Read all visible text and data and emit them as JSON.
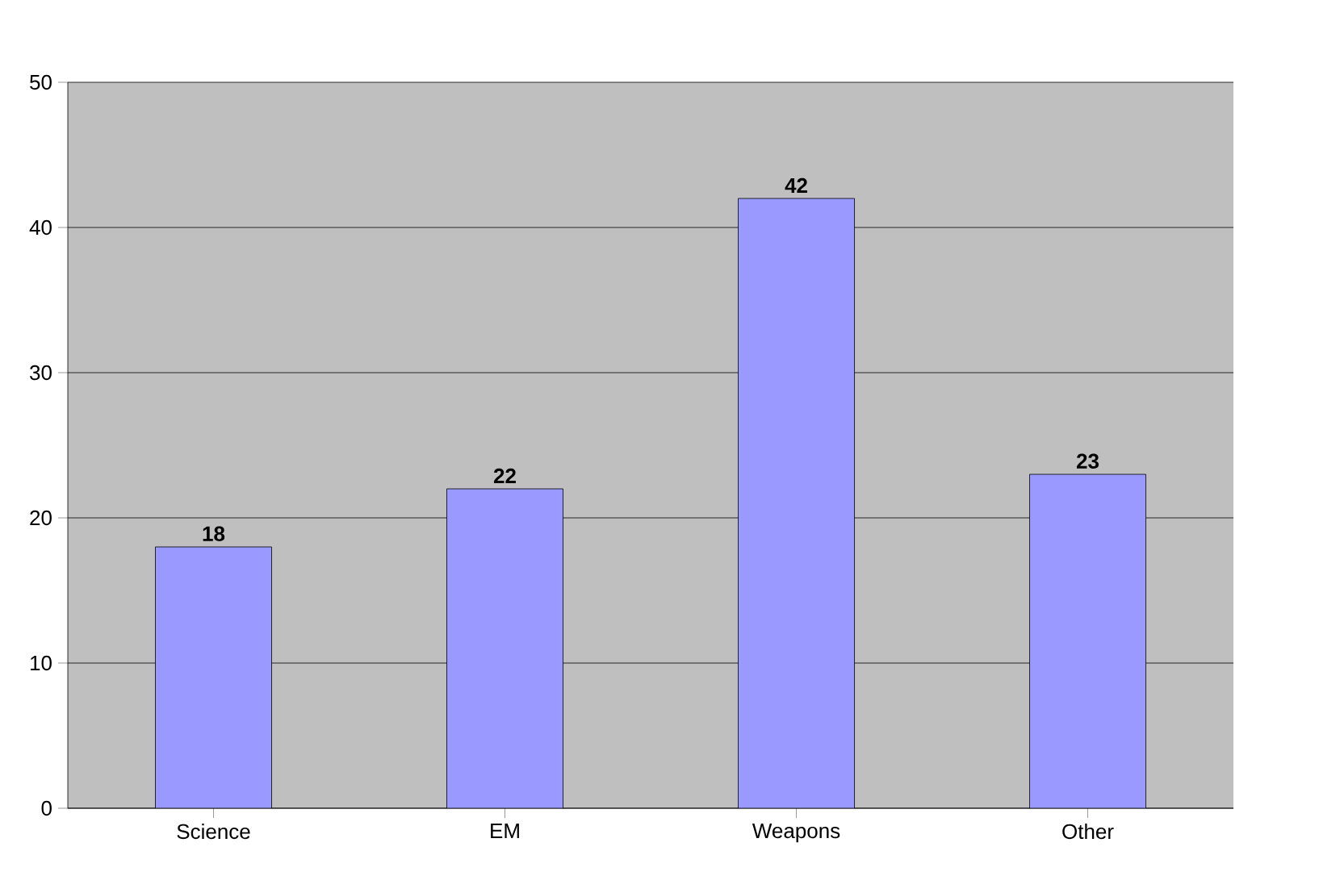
{
  "chart_data": {
    "type": "bar",
    "categories": [
      "Science",
      "EM",
      "Weapons",
      "Other"
    ],
    "values": [
      18,
      22,
      42,
      23
    ],
    "color": "#9999ff",
    "ylim": [
      0,
      50
    ],
    "yticks": [
      0,
      10,
      20,
      30,
      40,
      50
    ],
    "grid": "y",
    "data_labels": true
  }
}
